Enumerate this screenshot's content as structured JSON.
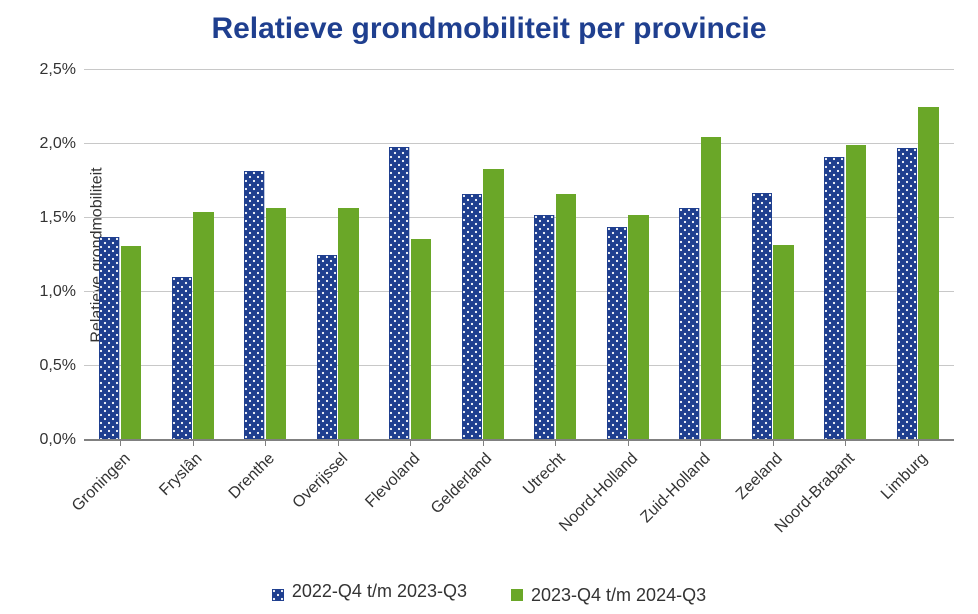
{
  "chart": {
    "type": "bar",
    "title": "Relatieve grondmobiliteit per provincie",
    "title_color": "#1f3f8f",
    "title_fontsize": 30,
    "ylabel": "Relatieve grondmobiliteit",
    "label_fontsize": 16,
    "tick_fontsize": 16,
    "legend_fontsize": 18,
    "background_color": "#ffffff",
    "grid_color": "#c8c8c8",
    "axis_color": "#808080",
    "categories": [
      "Groningen",
      "Fryslân",
      "Drenthe",
      "Overijssel",
      "Flevoland",
      "Gelderland",
      "Utrecht",
      "Noord-Holland",
      "Zuid-Holland",
      "Zeeland",
      "Noord-Brabant",
      "Limburg"
    ],
    "series": [
      {
        "name": "2022-Q4 t/m 2023-Q3",
        "values": [
          1.37,
          1.1,
          1.82,
          1.25,
          1.98,
          1.66,
          1.52,
          1.44,
          1.57,
          1.67,
          1.91,
          1.97
        ],
        "color": "#1f3f8f",
        "pattern": "dots",
        "dot_color": "#ffffff"
      },
      {
        "name": "2023-Q4 t/m 2024-Q3",
        "values": [
          1.31,
          1.54,
          1.57,
          1.57,
          1.36,
          1.83,
          1.66,
          1.52,
          2.05,
          1.32,
          1.99,
          2.25
        ],
        "color": "#6aa728",
        "pattern": "solid"
      }
    ],
    "ylim": [
      0.0,
      2.5
    ],
    "ytick_step": 0.5,
    "ytick_format": "comma-percent-1dp",
    "yticks": [
      "0,0%",
      "0,5%",
      "1,0%",
      "1,5%",
      "2,0%",
      "2,5%"
    ],
    "bar_group_width": 0.58,
    "bar_gap_within": 0.02
  }
}
